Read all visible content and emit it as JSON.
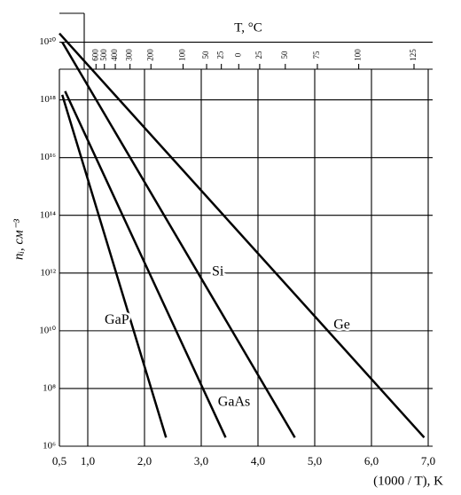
{
  "chart_data": {
    "type": "line",
    "x_label": "(1000 / T), K",
    "y_label": "nᵢ, см⁻³",
    "top_label": "T, °C",
    "log_y": true,
    "grid": true,
    "xlim": [
      0.5,
      7.0
    ],
    "ylim": [
      1000000.0,
      3e+20
    ],
    "xticks": [
      {
        "value": 0.5,
        "label": "0,5"
      },
      {
        "value": 1,
        "label": "1,0"
      },
      {
        "value": 2,
        "label": "2,0"
      },
      {
        "value": 3,
        "label": "3,0"
      },
      {
        "value": 4,
        "label": "4,0"
      },
      {
        "value": 5,
        "label": "5,0"
      },
      {
        "value": 6,
        "label": "6,0"
      },
      {
        "value": 7,
        "label": "7,0"
      }
    ],
    "yticks": [
      {
        "value": 1000000.0,
        "label": "10⁶"
      },
      {
        "value": 100000000.0,
        "label": "10⁸"
      },
      {
        "value": 10000000000.0,
        "label": "10¹⁰"
      },
      {
        "value": 1000000000000.0,
        "label": "10¹²"
      },
      {
        "value": 100000000000000.0,
        "label": "10¹⁴"
      },
      {
        "value": 1e+16,
        "label": "10¹⁶"
      },
      {
        "value": 1e+18,
        "label": "10¹⁸"
      },
      {
        "value": 1e+20,
        "label": "10²⁰"
      }
    ],
    "top_ticks": [
      600,
      500,
      400,
      300,
      200,
      100,
      50,
      25,
      0,
      {
        "value": -25,
        "label": "25"
      },
      {
        "value": -50,
        "label": "50"
      },
      {
        "value": -75,
        "label": "75"
      },
      {
        "value": -100,
        "label": "100"
      },
      {
        "value": -125,
        "label": "125"
      }
    ],
    "series": [
      {
        "name": "Ge",
        "color": "#000000",
        "x": [
          0.5,
          6.93
        ],
        "values": [
          2e+20,
          2000000.0
        ]
      },
      {
        "name": "Si",
        "color": "#000000",
        "x": [
          0.55,
          4.65
        ],
        "values": [
          1e+20,
          2000000.0
        ]
      },
      {
        "name": "GaAs",
        "color": "#000000",
        "x": [
          0.6,
          3.43
        ],
        "values": [
          2e+18,
          2000000.0
        ]
      },
      {
        "name": "GaP",
        "color": "#000000",
        "x": [
          0.55,
          2.38
        ],
        "values": [
          1.5e+18,
          2000000.0
        ]
      }
    ]
  }
}
